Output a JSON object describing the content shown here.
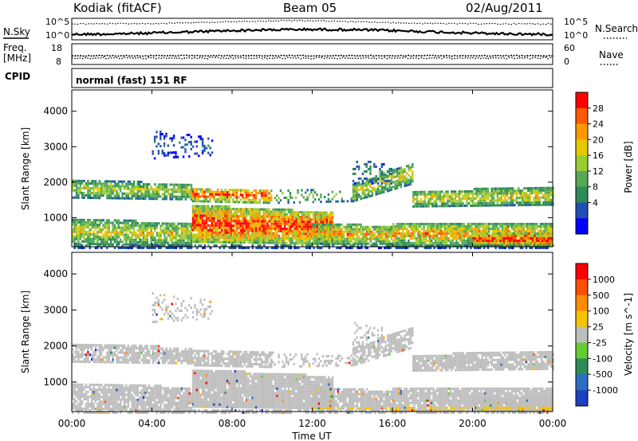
{
  "header": {
    "station": "Kodiak (fitACF)",
    "beam": "Beam 05",
    "date": "02/Aug/2011"
  },
  "labels": {
    "nsky": "N.Sky",
    "nsearch": "N.Search",
    "freq": "Freq.",
    "mhz": "[MHz]",
    "nave": "Nave",
    "cpid": "CPID",
    "cpid_value": "normal (fast) 151 RF",
    "nsky_ticks": [
      "10^5",
      "10^0"
    ],
    "nsearch_ticks": [
      "10^5",
      "10^0"
    ],
    "freq_ticks": [
      "18",
      "8"
    ],
    "nave_ticks": [
      "60",
      "0"
    ]
  },
  "chart_data": [
    {
      "type": "line",
      "title": "",
      "series": [
        {
          "name": "N.Sky",
          "style": "thick"
        },
        {
          "name": "N.Search",
          "style": "dotted"
        }
      ],
      "ylim": [
        0,
        5
      ],
      "yscale": "log10"
    },
    {
      "type": "line",
      "series": [
        {
          "name": "Freq.",
          "unit": "MHz",
          "approx": 10.5
        },
        {
          "name": "Nave",
          "approx": 30
        }
      ],
      "ylim_left": [
        8,
        18
      ],
      "ylim_right": [
        0,
        60
      ]
    },
    {
      "type": "heatmap",
      "quantity": "Power",
      "colorbar_label": "Power [dB]",
      "colorbar_ticks": [
        "28",
        "24",
        "20",
        "16",
        "12",
        "8",
        "4"
      ],
      "colorbar_colors": [
        "#0000ff",
        "#1f4fb5",
        "#2e8b57",
        "#55aa55",
        "#9acd32",
        "#e6c800",
        "#ff9900",
        "#ff5a00",
        "#ff0000"
      ],
      "ylabel": "Slant Range [km]",
      "yticks": [
        "1000",
        "2000",
        "3000",
        "4000"
      ],
      "ylim": [
        180,
        4600
      ]
    },
    {
      "type": "heatmap",
      "quantity": "Velocity",
      "colorbar_label": "Velocity [m s^-1]",
      "colorbar_ticks": [
        "1000",
        "500",
        "100",
        "25",
        "-25",
        "-100",
        "-500",
        "-1000"
      ],
      "colorbar_colors": [
        "#1e3fbf",
        "#2d6ec2",
        "#2e8b57",
        "#66cc33",
        "#bebebe",
        "#f5c200",
        "#ff8c00",
        "#ff5000",
        "#ff0000"
      ],
      "ylabel": "Slant Range [km]",
      "yticks": [
        "1000",
        "2000",
        "3000",
        "4000"
      ],
      "ylim": [
        180,
        4600
      ]
    }
  ],
  "time_axis": {
    "xlabel": "Time UT",
    "ticks": [
      "00:00",
      "04:00",
      "08:00",
      "12:00",
      "16:00",
      "20:00",
      "00:00"
    ],
    "xlim_hours": [
      0,
      24
    ]
  }
}
